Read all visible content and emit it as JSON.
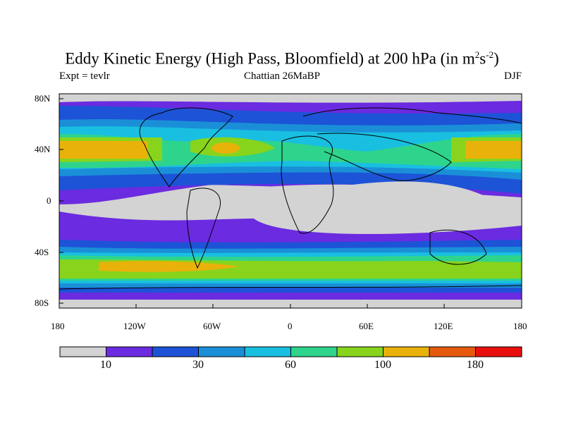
{
  "title": {
    "main": "Eddy Kinetic Energy (High Pass, Bloomfield) at 200 hPa (in m",
    "sup1": "2",
    "mid": "s",
    "sup2": "-2",
    "end": ")"
  },
  "subtitle": {
    "left": "Expt = tevlr",
    "center": "Chattian  26MaBP",
    "right": "DJF"
  },
  "map": {
    "lon_range": [
      -180,
      180
    ],
    "lat_range": [
      -90,
      90
    ],
    "lat_ticks": [
      "80N",
      "40N",
      "0",
      "40S",
      "80S"
    ],
    "lon_ticks": [
      "180",
      "120W",
      "60W",
      "0",
      "60E",
      "120E",
      "180"
    ]
  },
  "colorbar": {
    "colors": [
      "#d3d3d3",
      "#6b2be0",
      "#1d53d6",
      "#1a8fd8",
      "#19bfe0",
      "#2fd48c",
      "#88d41c",
      "#e8b20b",
      "#e65a10",
      "#e8100e"
    ],
    "labels": [
      "10",
      "30",
      "60",
      "100",
      "180"
    ]
  },
  "chart_data": {
    "type": "heatmap",
    "title": "Eddy Kinetic Energy (High Pass, Bloomfield) at 200 hPa (in m2s-2)",
    "legend_levels": [
      "10",
      "30",
      "60",
      "100",
      "180"
    ],
    "bands": [
      {
        "lat_center": 40,
        "description": "northern storm track maxima over N Pacific, N Atlantic"
      },
      {
        "lat_center": -50,
        "description": "southern storm track maxima"
      }
    ]
  }
}
